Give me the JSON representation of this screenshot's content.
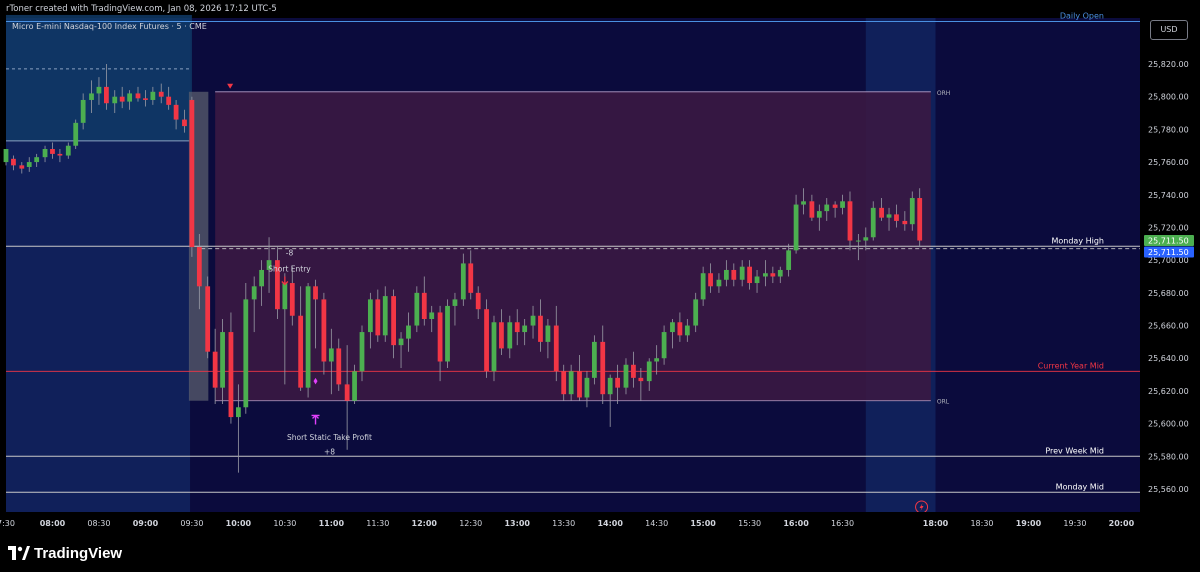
{
  "header": {
    "attribution": "rToner created with TradingView.com, Jan 08, 2026 17:12 UTC-5"
  },
  "symbol_title": "Micro E-mini Nasdaq-100 Index Futures · 5 · CME",
  "currency_button": "USD",
  "footer": {
    "brand": "TradingView"
  },
  "colors": {
    "background": "#000000",
    "plot_background": "#0b0b3d",
    "session_highlight": "#10205a",
    "premarket_highlight": "#0f3a66",
    "range_box": "#3a1842",
    "up_candle": "#4caf50",
    "down_candle": "#f23645",
    "current_year_mid": "#f23645",
    "daily_open": "#4a90e2",
    "price_tag_green": "#4caf50",
    "price_tag_blue": "#2962ff",
    "signal_magenta": "#e040fb"
  },
  "chart_data": {
    "type": "candlestick",
    "title": "Micro E-mini Nasdaq-100 Index Futures · 5 · CME",
    "ylim": [
      25548,
      25850
    ],
    "y_ticks": [
      "25,820.00",
      "25,800.00",
      "25,780.00",
      "25,760.00",
      "25,740.00",
      "25,720.00",
      "25,700.00",
      "25,680.00",
      "25,660.00",
      "25,640.00",
      "25,620.00",
      "25,600.00",
      "25,580.00",
      "25,560.00"
    ],
    "y_tick_values": [
      25820,
      25800,
      25780,
      25760,
      25740,
      25720,
      25700,
      25680,
      25660,
      25640,
      25620,
      25600,
      25580,
      25560
    ],
    "x_ticks": [
      {
        "label": "7:30",
        "t": 7.5,
        "bold": false
      },
      {
        "label": "08:00",
        "t": 8.0,
        "bold": true
      },
      {
        "label": "08:30",
        "t": 8.5,
        "bold": false
      },
      {
        "label": "09:00",
        "t": 9.0,
        "bold": true
      },
      {
        "label": "09:30",
        "t": 9.5,
        "bold": false
      },
      {
        "label": "10:00",
        "t": 10.0,
        "bold": true
      },
      {
        "label": "10:30",
        "t": 10.5,
        "bold": false
      },
      {
        "label": "11:00",
        "t": 11.0,
        "bold": true
      },
      {
        "label": "11:30",
        "t": 11.5,
        "bold": false
      },
      {
        "label": "12:00",
        "t": 12.0,
        "bold": true
      },
      {
        "label": "12:30",
        "t": 12.5,
        "bold": false
      },
      {
        "label": "13:00",
        "t": 13.0,
        "bold": true
      },
      {
        "label": "13:30",
        "t": 13.5,
        "bold": false
      },
      {
        "label": "14:00",
        "t": 14.0,
        "bold": true
      },
      {
        "label": "14:30",
        "t": 14.5,
        "bold": false
      },
      {
        "label": "15:00",
        "t": 15.0,
        "bold": true
      },
      {
        "label": "15:30",
        "t": 15.5,
        "bold": false
      },
      {
        "label": "16:00",
        "t": 16.0,
        "bold": true
      },
      {
        "label": "16:30",
        "t": 16.5,
        "bold": false
      },
      {
        "label": "18:00",
        "t": 17.5,
        "bold": true
      },
      {
        "label": "18:30",
        "t": 18.0,
        "bold": false
      },
      {
        "label": "19:00",
        "t": 18.5,
        "bold": true
      },
      {
        "label": "19:30",
        "t": 19.0,
        "bold": false
      },
      {
        "label": "20:00",
        "t": 19.5,
        "bold": true
      }
    ],
    "time_start": 7.5,
    "time_end": 19.7,
    "premarket_zone": {
      "t0": 7.5,
      "t1": 9.5,
      "high": 25850,
      "low": 25773
    },
    "premarket_dashed_level": 25817,
    "session_zone": {
      "t0": 16.75,
      "t1": 17.5
    },
    "opening_range": {
      "t0": 9.5,
      "t1": 9.58,
      "high": 25803,
      "low": 25614
    },
    "range_box": {
      "t0": 9.75,
      "t1": 17.45,
      "high": 25803,
      "low": 25614,
      "high_label": "ORH",
      "low_label": "ORL"
    },
    "levels": [
      {
        "name": "Daily Open",
        "price": 25846,
        "color": "#4a90e2",
        "style": "solid",
        "t0": 7.5
      },
      {
        "name": "Monday High",
        "price": 25708.5,
        "color": "#c8c8c8",
        "style": "solid",
        "t0": 7.5
      },
      {
        "name": "Current Year Mid",
        "price": 25632,
        "color": "#f23645",
        "style": "solid",
        "t0": 7.5
      },
      {
        "name": "Prev Week Mid",
        "price": 25580,
        "color": "#c8c8c8",
        "style": "solid",
        "t0": 7.5
      },
      {
        "name": "Monday Mid",
        "price": 25558,
        "color": "#c8c8c8",
        "style": "solid",
        "t0": 7.5
      }
    ],
    "price_tags": [
      {
        "value": "25,711.50",
        "price": 25712,
        "color": "#4caf50"
      },
      {
        "value": "25,711.50",
        "price": 25705,
        "color": "#2962ff"
      }
    ],
    "candles": [
      [
        7.5,
        25760,
        25768,
        25758,
        25768
      ],
      [
        7.58,
        25762,
        25764,
        25755,
        25758
      ],
      [
        7.67,
        25758,
        25760,
        25753,
        25756
      ],
      [
        7.75,
        25757,
        25763,
        25754,
        25760
      ],
      [
        7.83,
        25760,
        25765,
        25757,
        25763
      ],
      [
        7.92,
        25763,
        25770,
        25760,
        25768
      ],
      [
        8.0,
        25768,
        25772,
        25762,
        25765
      ],
      [
        8.08,
        25765,
        25768,
        25760,
        25764
      ],
      [
        8.17,
        25764,
        25772,
        25762,
        25770
      ],
      [
        8.25,
        25770,
        25786,
        25768,
        25784
      ],
      [
        8.33,
        25784,
        25802,
        25780,
        25798
      ],
      [
        8.42,
        25798,
        25810,
        25790,
        25802
      ],
      [
        8.5,
        25802,
        25812,
        25795,
        25806
      ],
      [
        8.58,
        25806,
        25820,
        25792,
        25796
      ],
      [
        8.67,
        25796,
        25804,
        25790,
        25800
      ],
      [
        8.75,
        25800,
        25806,
        25793,
        25797
      ],
      [
        8.83,
        25797,
        25804,
        25792,
        25802
      ],
      [
        8.92,
        25802,
        25806,
        25797,
        25799
      ],
      [
        9.0,
        25799,
        25804,
        25794,
        25798
      ],
      [
        9.08,
        25798,
        25806,
        25795,
        25803
      ],
      [
        9.17,
        25803,
        25808,
        25796,
        25800
      ],
      [
        9.25,
        25800,
        25806,
        25792,
        25795
      ],
      [
        9.33,
        25795,
        25798,
        25780,
        25786
      ],
      [
        9.42,
        25786,
        25792,
        25778,
        25782
      ],
      [
        9.5,
        25798,
        25800,
        25702,
        25708
      ],
      [
        9.58,
        25708,
        25716,
        25670,
        25684
      ],
      [
        9.67,
        25684,
        25690,
        25640,
        25644
      ],
      [
        9.75,
        25644,
        25658,
        25612,
        25622
      ],
      [
        9.83,
        25622,
        25664,
        25612,
        25656
      ],
      [
        9.92,
        25656,
        25668,
        25600,
        25604
      ],
      [
        10.0,
        25604,
        25624,
        25570,
        25610
      ],
      [
        10.08,
        25610,
        25686,
        25606,
        25676
      ],
      [
        10.17,
        25676,
        25690,
        25656,
        25684
      ],
      [
        10.25,
        25684,
        25700,
        25672,
        25694
      ],
      [
        10.33,
        25694,
        25714,
        25680,
        25700
      ],
      [
        10.42,
        25700,
        25708,
        25664,
        25670
      ],
      [
        10.5,
        25670,
        25692,
        25624,
        25686
      ],
      [
        10.58,
        25686,
        25696,
        25660,
        25666
      ],
      [
        10.67,
        25666,
        25684,
        25620,
        25622
      ],
      [
        10.75,
        25622,
        25686,
        25616,
        25684
      ],
      [
        10.83,
        25684,
        25688,
        25646,
        25676
      ],
      [
        10.92,
        25676,
        25680,
        25630,
        25638
      ],
      [
        11.0,
        25638,
        25658,
        25618,
        25646
      ],
      [
        11.08,
        25646,
        25652,
        25620,
        25624
      ],
      [
        11.17,
        25624,
        25648,
        25584,
        25614
      ],
      [
        11.25,
        25614,
        25636,
        25612,
        25632
      ],
      [
        11.33,
        25632,
        25660,
        25626,
        25656
      ],
      [
        11.42,
        25656,
        25680,
        25646,
        25676
      ],
      [
        11.5,
        25676,
        25682,
        25650,
        25654
      ],
      [
        11.58,
        25654,
        25684,
        25650,
        25678
      ],
      [
        11.67,
        25678,
        25682,
        25640,
        25648
      ],
      [
        11.75,
        25648,
        25656,
        25634,
        25652
      ],
      [
        11.83,
        25652,
        25668,
        25644,
        25660
      ],
      [
        11.92,
        25660,
        25684,
        25656,
        25680
      ],
      [
        12.0,
        25680,
        25690,
        25660,
        25664
      ],
      [
        12.08,
        25664,
        25672,
        25656,
        25668
      ],
      [
        12.17,
        25668,
        25672,
        25626,
        25638
      ],
      [
        12.25,
        25638,
        25676,
        25634,
        25672
      ],
      [
        12.33,
        25672,
        25680,
        25660,
        25676
      ],
      [
        12.42,
        25676,
        25704,
        25672,
        25698
      ],
      [
        12.5,
        25698,
        25706,
        25676,
        25680
      ],
      [
        12.58,
        25680,
        25684,
        25664,
        25670
      ],
      [
        12.67,
        25670,
        25676,
        25628,
        25632
      ],
      [
        12.75,
        25632,
        25666,
        25626,
        25662
      ],
      [
        12.83,
        25662,
        25670,
        25642,
        25646
      ],
      [
        12.92,
        25646,
        25666,
        25640,
        25662
      ],
      [
        13.0,
        25662,
        25670,
        25648,
        25656
      ],
      [
        13.08,
        25656,
        25664,
        25648,
        25660
      ],
      [
        13.17,
        25660,
        25672,
        25652,
        25666
      ],
      [
        13.25,
        25666,
        25676,
        25644,
        25650
      ],
      [
        13.33,
        25650,
        25664,
        25640,
        25660
      ],
      [
        13.42,
        25660,
        25672,
        25626,
        25632
      ],
      [
        13.5,
        25632,
        25636,
        25614,
        25618
      ],
      [
        13.58,
        25618,
        25636,
        25614,
        25632
      ],
      [
        13.67,
        25632,
        25642,
        25614,
        25616
      ],
      [
        13.75,
        25616,
        25632,
        25610,
        25628
      ],
      [
        13.83,
        25628,
        25654,
        25624,
        25650
      ],
      [
        13.92,
        25650,
        25660,
        25612,
        25618
      ],
      [
        14.0,
        25618,
        25630,
        25598,
        25628
      ],
      [
        14.08,
        25628,
        25636,
        25612,
        25622
      ],
      [
        14.17,
        25622,
        25640,
        25618,
        25636
      ],
      [
        14.25,
        25636,
        25644,
        25622,
        25628
      ],
      [
        14.33,
        25628,
        25634,
        25614,
        25626
      ],
      [
        14.42,
        25626,
        25640,
        25620,
        25638
      ],
      [
        14.5,
        25638,
        25648,
        25630,
        25640
      ],
      [
        14.58,
        25640,
        25660,
        25636,
        25656
      ],
      [
        14.67,
        25656,
        25664,
        25646,
        25662
      ],
      [
        14.75,
        25662,
        25668,
        25650,
        25654
      ],
      [
        14.83,
        25654,
        25664,
        25650,
        25660
      ],
      [
        14.92,
        25660,
        25680,
        25656,
        25676
      ],
      [
        15.0,
        25676,
        25696,
        25672,
        25692
      ],
      [
        15.08,
        25692,
        25698,
        25680,
        25684
      ],
      [
        15.17,
        25684,
        25692,
        25680,
        25688
      ],
      [
        15.25,
        25688,
        25700,
        25684,
        25694
      ],
      [
        15.33,
        25694,
        25698,
        25684,
        25688
      ],
      [
        15.42,
        25688,
        25700,
        25684,
        25696
      ],
      [
        15.5,
        25696,
        25700,
        25682,
        25686
      ],
      [
        15.58,
        25686,
        25694,
        25680,
        25690
      ],
      [
        15.67,
        25690,
        25700,
        25684,
        25692
      ],
      [
        15.75,
        25692,
        25696,
        25686,
        25690
      ],
      [
        15.83,
        25690,
        25696,
        25686,
        25694
      ],
      [
        15.92,
        25694,
        25710,
        25690,
        25706
      ],
      [
        16.0,
        25706,
        25740,
        25704,
        25734
      ],
      [
        16.08,
        25734,
        25744,
        25728,
        25736
      ],
      [
        16.17,
        25736,
        25740,
        25724,
        25726
      ],
      [
        16.25,
        25726,
        25734,
        25718,
        25730
      ],
      [
        16.33,
        25730,
        25738,
        25724,
        25734
      ],
      [
        16.42,
        25734,
        25736,
        25726,
        25732
      ],
      [
        16.5,
        25732,
        25740,
        25728,
        25736
      ],
      [
        16.58,
        25736,
        25742,
        25706,
        25712
      ],
      [
        16.67,
        25712,
        25716,
        25700,
        25712
      ],
      [
        16.75,
        25712,
        25720,
        25706,
        25714
      ],
      [
        16.83,
        25714,
        25736,
        25712,
        25732
      ],
      [
        16.92,
        25732,
        25738,
        25724,
        25726
      ],
      [
        17.0,
        25726,
        25732,
        25718,
        25728
      ],
      [
        17.08,
        25728,
        25734,
        25720,
        25724
      ],
      [
        17.17,
        25724,
        25730,
        25718,
        25722
      ],
      [
        17.25,
        25722,
        25742,
        25718,
        25738
      ],
      [
        17.33,
        25738,
        25744,
        25708,
        25712
      ]
    ],
    "annotations": [
      {
        "text": "-8",
        "t": 10.55,
        "price": 25703,
        "kind": "label"
      },
      {
        "text": "Short Entry",
        "t": 10.55,
        "price": 25693,
        "kind": "label"
      },
      {
        "text": "Short Static Take Profit",
        "t": 10.98,
        "price": 25590,
        "kind": "label"
      },
      {
        "text": "+8",
        "t": 10.98,
        "price": 25581,
        "kind": "label"
      }
    ],
    "grid": false
  }
}
